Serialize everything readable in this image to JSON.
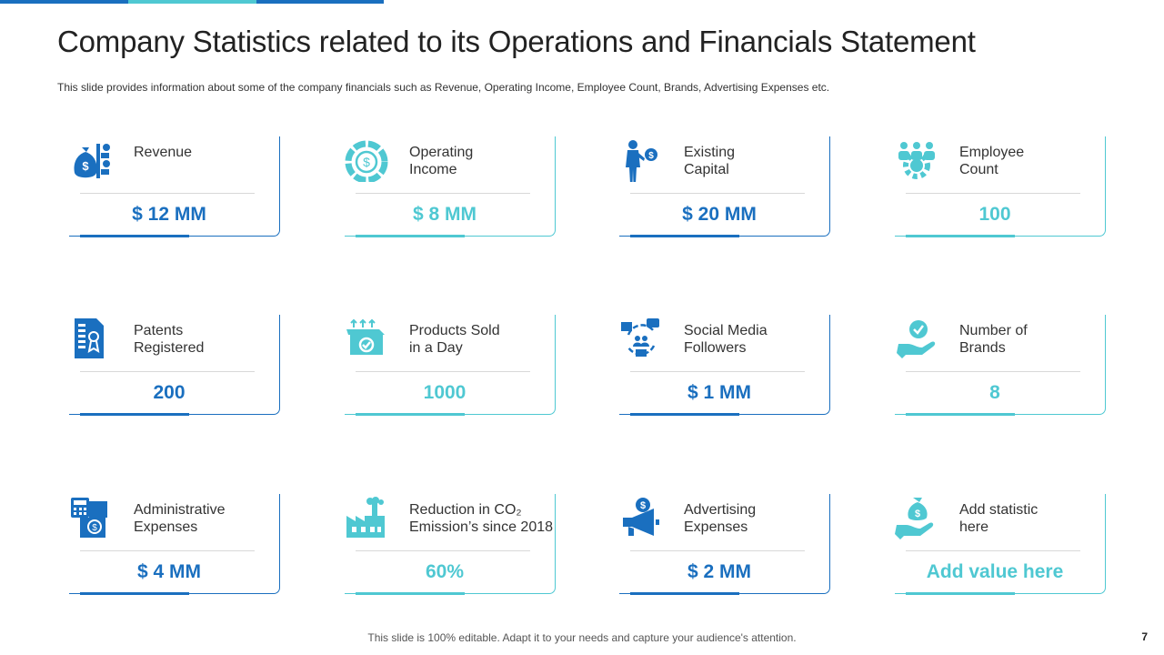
{
  "title": "Company Statistics related to its Operations and Financials Statement",
  "subtitle": "This slide provides  information  about  some of the company financials such as Revenue,  Operating Income, Employee Count, Brands, Advertising Expenses etc.",
  "colors": {
    "blue": "#1a6fbf",
    "cyan": "#4fc8d2"
  },
  "stats": [
    {
      "label": "Revenue",
      "value": "$ 12 MM",
      "icon": "money-bag-chart-icon",
      "color": "blue"
    },
    {
      "label": "Operating\nIncome",
      "value": "$ 8 MM",
      "icon": "dollar-circle-icon",
      "color": "cyan"
    },
    {
      "label": "Existing\nCapital",
      "value": "$ 20 MM",
      "icon": "businessman-dollar-icon",
      "color": "blue"
    },
    {
      "label": "Employee\nCount",
      "value": "100",
      "icon": "team-gear-icon",
      "color": "cyan"
    },
    {
      "label": "Patents\nRegistered",
      "value": "200",
      "icon": "patent-document-icon",
      "color": "blue"
    },
    {
      "label": "Products Sold\nin a Day",
      "value": "1000",
      "icon": "product-box-icon",
      "color": "cyan"
    },
    {
      "label": "Social Media\nFollowers",
      "value": "$ 1 MM",
      "icon": "social-network-icon",
      "color": "blue"
    },
    {
      "label": "Number of\nBrands",
      "value": "8",
      "icon": "hand-badge-icon",
      "color": "cyan"
    },
    {
      "label": "Administrative\nExpenses",
      "value": "$ 4 MM",
      "icon": "calculator-invoice-icon",
      "color": "blue"
    },
    {
      "label": "Reduction in CO₂\nEmission’s since 2018",
      "value": "60%",
      "icon": "factory-icon",
      "color": "cyan"
    },
    {
      "label": "Advertising\nExpenses",
      "value": "$ 2 MM",
      "icon": "megaphone-dollar-icon",
      "color": "blue"
    },
    {
      "label": "Add statistic\nhere",
      "value": "Add value here",
      "icon": "hand-money-bag-icon",
      "color": "cyan"
    }
  ],
  "footer": "This slide is 100% editable. Adapt it to your needs and capture your audience's attention.",
  "page_number": "7"
}
